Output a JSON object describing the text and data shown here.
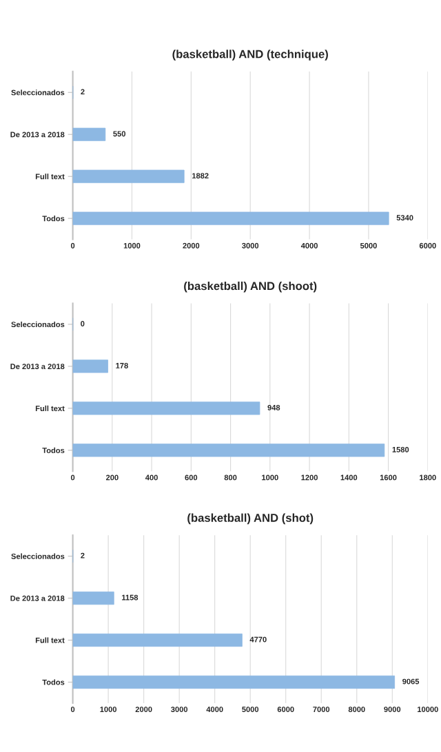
{
  "chart_data": [
    {
      "type": "bar",
      "orientation": "horizontal",
      "title": "(basketball) AND (technique)",
      "categories": [
        "Seleccionados",
        "De 2013 a 2018",
        "Full text",
        "Todos"
      ],
      "values": [
        2,
        550,
        1882,
        5340
      ],
      "color": "#8db8e3",
      "xlim": [
        0,
        6000
      ],
      "xticks": [
        0,
        1000,
        2000,
        3000,
        4000,
        5000,
        6000
      ],
      "grid": "x",
      "data_labels": true
    },
    {
      "type": "bar",
      "orientation": "horizontal",
      "title": "(basketball) AND (shoot)",
      "categories": [
        "Seleccionados",
        "De 2013 a 2018",
        "Full text",
        "Todos"
      ],
      "values": [
        0,
        178,
        948,
        1580
      ],
      "color": "#8db8e3",
      "xlim": [
        0,
        1800
      ],
      "xticks": [
        0,
        200,
        400,
        600,
        800,
        1000,
        1200,
        1400,
        1600,
        1800
      ],
      "grid": "x",
      "data_labels": true
    },
    {
      "type": "bar",
      "orientation": "horizontal",
      "title": "(basketball) AND (shot)",
      "categories": [
        "Seleccionados",
        "De 2013 a 2018",
        "Full text",
        "Todos"
      ],
      "values": [
        2,
        1158,
        4770,
        9065
      ],
      "color": "#8db8e3",
      "xlim": [
        0,
        10000
      ],
      "xticks": [
        0,
        1000,
        2000,
        3000,
        4000,
        5000,
        6000,
        7000,
        8000,
        9000,
        10000
      ],
      "grid": "x",
      "data_labels": true
    }
  ]
}
